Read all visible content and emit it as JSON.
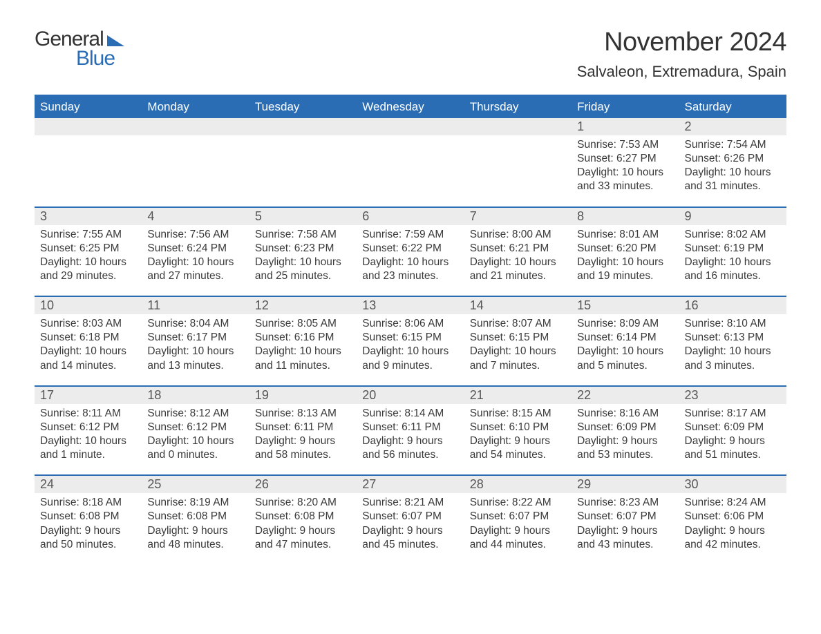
{
  "logo": {
    "general": "General",
    "blue": "Blue"
  },
  "title": "November 2024",
  "location": "Salvaleon, Extremadura, Spain",
  "colors": {
    "brand_blue": "#2a6db5",
    "text": "#333333",
    "row_bg": "#ececec",
    "background": "#ffffff"
  },
  "weekdays": [
    "Sunday",
    "Monday",
    "Tuesday",
    "Wednesday",
    "Thursday",
    "Friday",
    "Saturday"
  ],
  "weeks": [
    [
      null,
      null,
      null,
      null,
      null,
      {
        "day": "1",
        "sunrise": "Sunrise: 7:53 AM",
        "sunset": "Sunset: 6:27 PM",
        "daylight1": "Daylight: 10 hours",
        "daylight2": "and 33 minutes."
      },
      {
        "day": "2",
        "sunrise": "Sunrise: 7:54 AM",
        "sunset": "Sunset: 6:26 PM",
        "daylight1": "Daylight: 10 hours",
        "daylight2": "and 31 minutes."
      }
    ],
    [
      {
        "day": "3",
        "sunrise": "Sunrise: 7:55 AM",
        "sunset": "Sunset: 6:25 PM",
        "daylight1": "Daylight: 10 hours",
        "daylight2": "and 29 minutes."
      },
      {
        "day": "4",
        "sunrise": "Sunrise: 7:56 AM",
        "sunset": "Sunset: 6:24 PM",
        "daylight1": "Daylight: 10 hours",
        "daylight2": "and 27 minutes."
      },
      {
        "day": "5",
        "sunrise": "Sunrise: 7:58 AM",
        "sunset": "Sunset: 6:23 PM",
        "daylight1": "Daylight: 10 hours",
        "daylight2": "and 25 minutes."
      },
      {
        "day": "6",
        "sunrise": "Sunrise: 7:59 AM",
        "sunset": "Sunset: 6:22 PM",
        "daylight1": "Daylight: 10 hours",
        "daylight2": "and 23 minutes."
      },
      {
        "day": "7",
        "sunrise": "Sunrise: 8:00 AM",
        "sunset": "Sunset: 6:21 PM",
        "daylight1": "Daylight: 10 hours",
        "daylight2": "and 21 minutes."
      },
      {
        "day": "8",
        "sunrise": "Sunrise: 8:01 AM",
        "sunset": "Sunset: 6:20 PM",
        "daylight1": "Daylight: 10 hours",
        "daylight2": "and 19 minutes."
      },
      {
        "day": "9",
        "sunrise": "Sunrise: 8:02 AM",
        "sunset": "Sunset: 6:19 PM",
        "daylight1": "Daylight: 10 hours",
        "daylight2": "and 16 minutes."
      }
    ],
    [
      {
        "day": "10",
        "sunrise": "Sunrise: 8:03 AM",
        "sunset": "Sunset: 6:18 PM",
        "daylight1": "Daylight: 10 hours",
        "daylight2": "and 14 minutes."
      },
      {
        "day": "11",
        "sunrise": "Sunrise: 8:04 AM",
        "sunset": "Sunset: 6:17 PM",
        "daylight1": "Daylight: 10 hours",
        "daylight2": "and 13 minutes."
      },
      {
        "day": "12",
        "sunrise": "Sunrise: 8:05 AM",
        "sunset": "Sunset: 6:16 PM",
        "daylight1": "Daylight: 10 hours",
        "daylight2": "and 11 minutes."
      },
      {
        "day": "13",
        "sunrise": "Sunrise: 8:06 AM",
        "sunset": "Sunset: 6:15 PM",
        "daylight1": "Daylight: 10 hours",
        "daylight2": "and 9 minutes."
      },
      {
        "day": "14",
        "sunrise": "Sunrise: 8:07 AM",
        "sunset": "Sunset: 6:15 PM",
        "daylight1": "Daylight: 10 hours",
        "daylight2": "and 7 minutes."
      },
      {
        "day": "15",
        "sunrise": "Sunrise: 8:09 AM",
        "sunset": "Sunset: 6:14 PM",
        "daylight1": "Daylight: 10 hours",
        "daylight2": "and 5 minutes."
      },
      {
        "day": "16",
        "sunrise": "Sunrise: 8:10 AM",
        "sunset": "Sunset: 6:13 PM",
        "daylight1": "Daylight: 10 hours",
        "daylight2": "and 3 minutes."
      }
    ],
    [
      {
        "day": "17",
        "sunrise": "Sunrise: 8:11 AM",
        "sunset": "Sunset: 6:12 PM",
        "daylight1": "Daylight: 10 hours",
        "daylight2": "and 1 minute."
      },
      {
        "day": "18",
        "sunrise": "Sunrise: 8:12 AM",
        "sunset": "Sunset: 6:12 PM",
        "daylight1": "Daylight: 10 hours",
        "daylight2": "and 0 minutes."
      },
      {
        "day": "19",
        "sunrise": "Sunrise: 8:13 AM",
        "sunset": "Sunset: 6:11 PM",
        "daylight1": "Daylight: 9 hours",
        "daylight2": "and 58 minutes."
      },
      {
        "day": "20",
        "sunrise": "Sunrise: 8:14 AM",
        "sunset": "Sunset: 6:11 PM",
        "daylight1": "Daylight: 9 hours",
        "daylight2": "and 56 minutes."
      },
      {
        "day": "21",
        "sunrise": "Sunrise: 8:15 AM",
        "sunset": "Sunset: 6:10 PM",
        "daylight1": "Daylight: 9 hours",
        "daylight2": "and 54 minutes."
      },
      {
        "day": "22",
        "sunrise": "Sunrise: 8:16 AM",
        "sunset": "Sunset: 6:09 PM",
        "daylight1": "Daylight: 9 hours",
        "daylight2": "and 53 minutes."
      },
      {
        "day": "23",
        "sunrise": "Sunrise: 8:17 AM",
        "sunset": "Sunset: 6:09 PM",
        "daylight1": "Daylight: 9 hours",
        "daylight2": "and 51 minutes."
      }
    ],
    [
      {
        "day": "24",
        "sunrise": "Sunrise: 8:18 AM",
        "sunset": "Sunset: 6:08 PM",
        "daylight1": "Daylight: 9 hours",
        "daylight2": "and 50 minutes."
      },
      {
        "day": "25",
        "sunrise": "Sunrise: 8:19 AM",
        "sunset": "Sunset: 6:08 PM",
        "daylight1": "Daylight: 9 hours",
        "daylight2": "and 48 minutes."
      },
      {
        "day": "26",
        "sunrise": "Sunrise: 8:20 AM",
        "sunset": "Sunset: 6:08 PM",
        "daylight1": "Daylight: 9 hours",
        "daylight2": "and 47 minutes."
      },
      {
        "day": "27",
        "sunrise": "Sunrise: 8:21 AM",
        "sunset": "Sunset: 6:07 PM",
        "daylight1": "Daylight: 9 hours",
        "daylight2": "and 45 minutes."
      },
      {
        "day": "28",
        "sunrise": "Sunrise: 8:22 AM",
        "sunset": "Sunset: 6:07 PM",
        "daylight1": "Daylight: 9 hours",
        "daylight2": "and 44 minutes."
      },
      {
        "day": "29",
        "sunrise": "Sunrise: 8:23 AM",
        "sunset": "Sunset: 6:07 PM",
        "daylight1": "Daylight: 9 hours",
        "daylight2": "and 43 minutes."
      },
      {
        "day": "30",
        "sunrise": "Sunrise: 8:24 AM",
        "sunset": "Sunset: 6:06 PM",
        "daylight1": "Daylight: 9 hours",
        "daylight2": "and 42 minutes."
      }
    ]
  ]
}
